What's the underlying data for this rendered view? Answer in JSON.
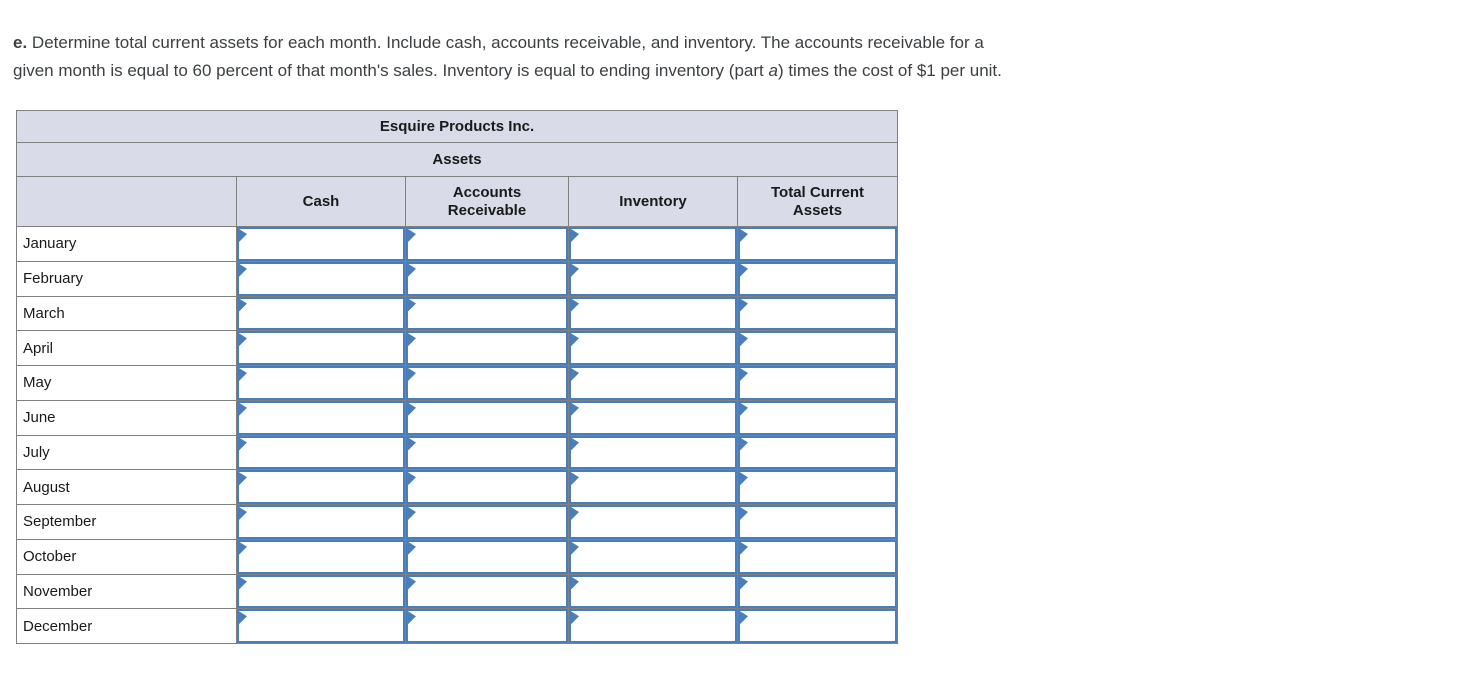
{
  "instruction": {
    "prefix": "e.",
    "line1": " Determine total current assets for each month. Include cash, accounts receivable, and inventory. The accounts receivable for a",
    "line2_before": "given month is equal to 60 percent of that month's sales. Inventory is equal to ending inventory (part ",
    "line2_italic": "a",
    "line2_after": ") times the cost of $1 per unit."
  },
  "table": {
    "title": "Esquire Products Inc.",
    "subtitle": "Assets",
    "columns": [
      "",
      "Cash",
      "Accounts Receivable",
      "Inventory",
      "Total Current Assets"
    ],
    "column_keys": [
      "cash",
      "accounts-receivable",
      "inventory",
      "total-current-assets"
    ],
    "rows": [
      "January",
      "February",
      "March",
      "April",
      "May",
      "June",
      "July",
      "August",
      "September",
      "October",
      "November",
      "December"
    ],
    "input_value": ""
  },
  "theme": {
    "header_bg": "#d9dce8",
    "grid_border": "#808080",
    "input_border": "#4a7ebb",
    "flag_color": "#4a7ebb",
    "text_color": "#3c4043"
  }
}
